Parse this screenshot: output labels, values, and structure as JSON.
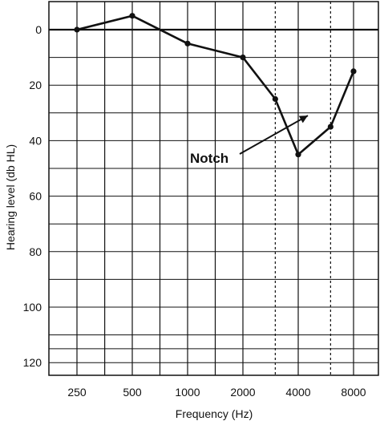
{
  "chart_data": {
    "type": "line",
    "title": "",
    "xlabel": "Frequency (Hz)",
    "ylabel": "Hearing level (db HL)",
    "x_scale": "log2",
    "x_categories": [
      "250",
      "500",
      "1000",
      "2000",
      "4000",
      "8000"
    ],
    "x_ticks": [
      250,
      500,
      1000,
      2000,
      4000,
      8000
    ],
    "x_dotted_gridlines": [
      3000,
      6000
    ],
    "y_ticks": [
      0,
      20,
      40,
      60,
      80,
      100,
      120
    ],
    "y_tick_labels": [
      "0",
      "20",
      "40",
      "60",
      "80",
      "100",
      "120"
    ],
    "y_minor_step": 10,
    "ylim": [
      -10,
      125
    ],
    "y_inverted": true,
    "grid": true,
    "series": [
      {
        "x": [
          250,
          500,
          1000,
          2000,
          3000,
          4000,
          6000,
          8000
        ],
        "y": [
          0,
          -5,
          5,
          10,
          25,
          45,
          35,
          15
        ]
      }
    ],
    "annotations": [
      {
        "text": "Notch",
        "points_to_x": 4000,
        "points_to_y": 35
      }
    ],
    "colors": {
      "line": "#111111",
      "grid": "#111111",
      "background": "#ffffff"
    }
  }
}
